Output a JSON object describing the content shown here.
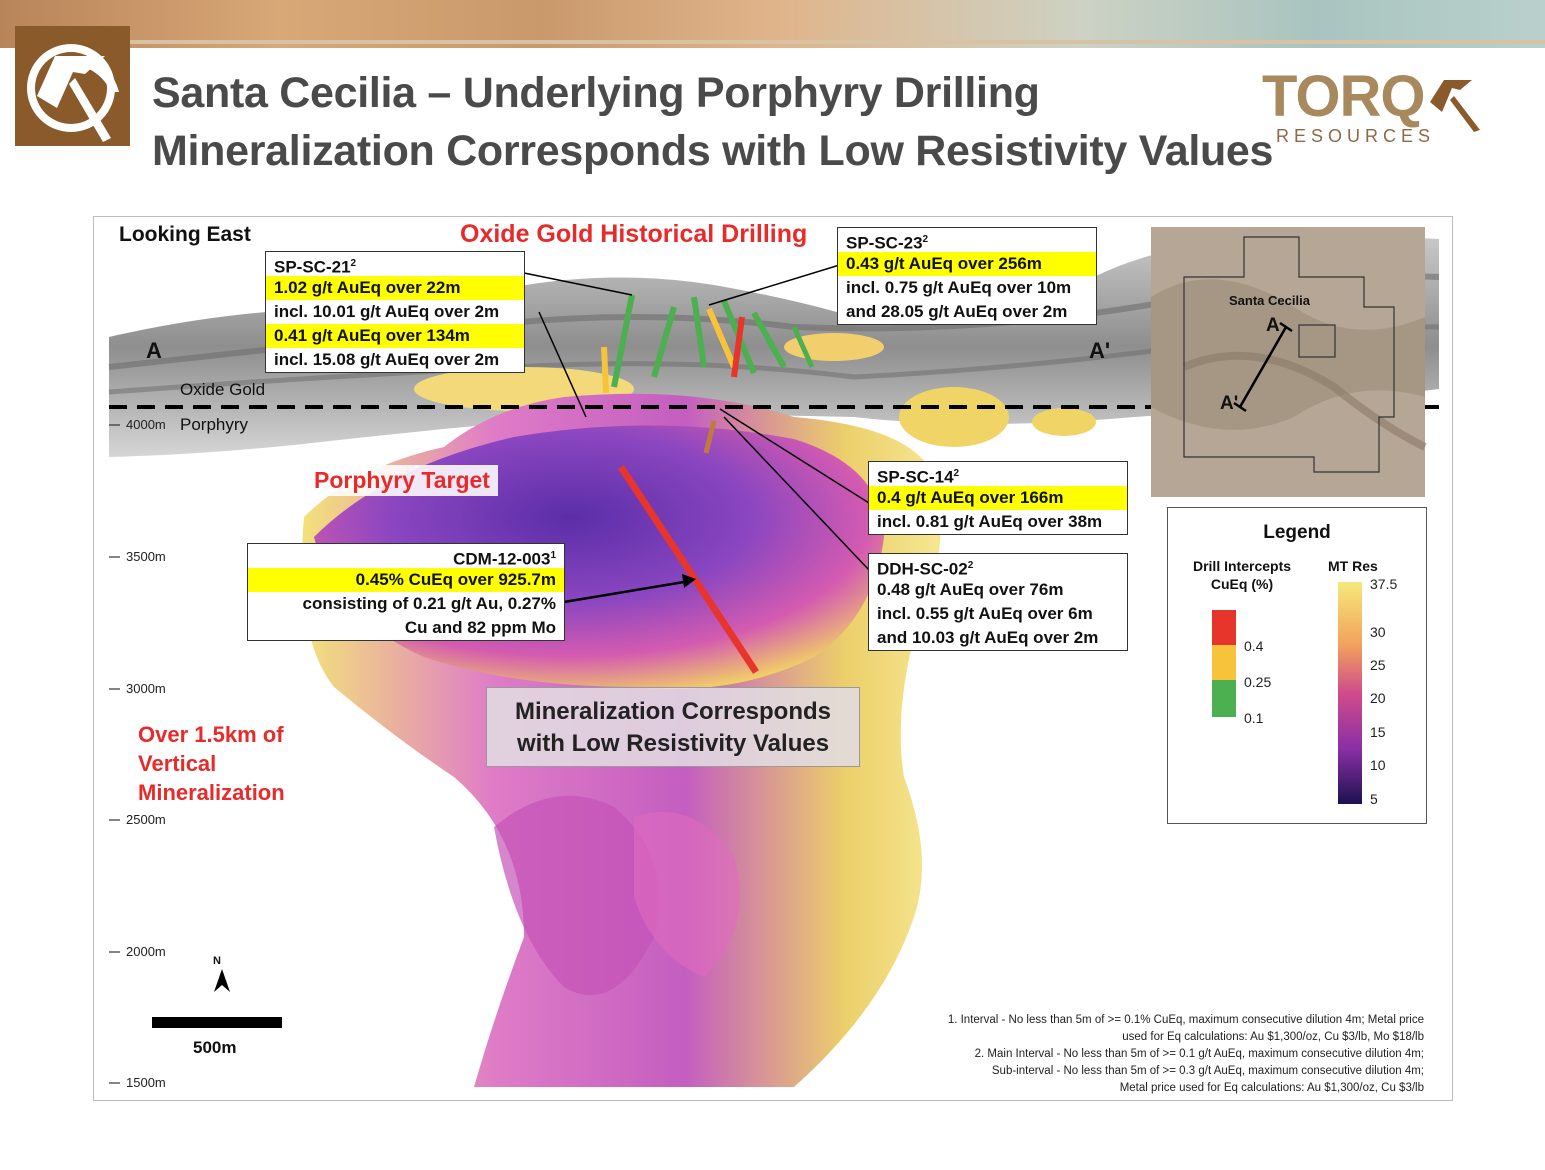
{
  "header": {
    "title_line1": "Santa Cecilia – Underlying Porphyry Drilling",
    "title_line2": "Mineralization Corresponds with Low Resistivity Values",
    "brand": "TORQ",
    "brand_sub": "RESOURCES"
  },
  "section": {
    "view_label": "Looking East",
    "historical_label": "Oxide Gold Historical Drilling",
    "a_label": "A",
    "a_prime_label": "A'",
    "oxide_label": "Oxide Gold",
    "porphyry_label": "Porphyry",
    "porphyry_target": "Porphyry Target",
    "vertical_line1": "Over 1.5km of",
    "vertical_line2": "Vertical",
    "vertical_line3": "Mineralization",
    "main_note_line1": "Mineralization Corresponds",
    "main_note_line2": "with Low Resistivity Values"
  },
  "depth_ticks": [
    "4000m",
    "3500m",
    "3000m",
    "2500m",
    "2000m",
    "1500m"
  ],
  "callouts": {
    "sp_sc_21": {
      "title": "SP-SC-21",
      "sup": "2",
      "lines": [
        "1.02 g/t AuEq over 22m",
        "incl. 10.01 g/t AuEq over 2m",
        "0.41 g/t AuEq over 134m",
        "incl. 15.08 g/t AuEq over 2m"
      ]
    },
    "sp_sc_23": {
      "title": "SP-SC-23",
      "sup": "2",
      "lines": [
        "0.43 g/t AuEq over 256m",
        "incl. 0.75 g/t AuEq over 10m",
        "and 28.05 g/t AuEq over 2m"
      ]
    },
    "sp_sc_14": {
      "title": "SP-SC-14",
      "sup": "2",
      "lines": [
        "0.4 g/t AuEq over 166m",
        "incl. 0.81 g/t AuEq over 38m"
      ]
    },
    "ddh_sc_02": {
      "title": "DDH-SC-02",
      "sup": "2",
      "lines": [
        "0.48 g/t AuEq over 76m",
        "incl. 0.55 g/t AuEq over 6m",
        "and 10.03 g/t AuEq over 2m"
      ]
    },
    "cdm_12_003": {
      "title": "CDM-12-003",
      "sup": "1",
      "lines": [
        "0.45% CuEq over 925.7m",
        "consisting of 0.21 g/t Au, 0.27%",
        "Cu and 82 ppm Mo"
      ]
    }
  },
  "inset_map": {
    "label": "Santa Cecilia",
    "a": "A",
    "a_prime": "A'"
  },
  "legend": {
    "title": "Legend",
    "drill_title_line1": "Drill Intercepts",
    "drill_title_line2": "CuEq (%)",
    "drill_ticks": [
      "0.4",
      "0.25",
      "0.1"
    ],
    "drill_colors": [
      "#e8352b",
      "#f6c33b",
      "#4caf50"
    ],
    "res_title": "MT Res",
    "res_ticks": [
      "37.5",
      "30",
      "25",
      "20",
      "15",
      "10",
      "5"
    ]
  },
  "scale": {
    "north": "N",
    "label": "500m"
  },
  "footnotes": [
    "1. Interval - No less than 5m of >= 0.1% CuEq, maximum consecutive dilution 4m; Metal price",
    "used for Eq calculations: Au $1,300/oz, Cu $3/lb, Mo $18/lb",
    "2. Main Interval - No less than 5m of >= 0.1 g/t AuEq, maximum consecutive dilution 4m;",
    "Sub-interval - No less than 5m of >= 0.3 g/t AuEq, maximum consecutive dilution 4m;",
    "Metal price used for Eq calculations: Au $1,300/oz, Cu $3/lb"
  ],
  "colors": {
    "title_gray": "#4a4a4a",
    "red_label": "#e82a2a",
    "highlight": "#ffff00",
    "brand_brown": "#8b5a2b"
  }
}
